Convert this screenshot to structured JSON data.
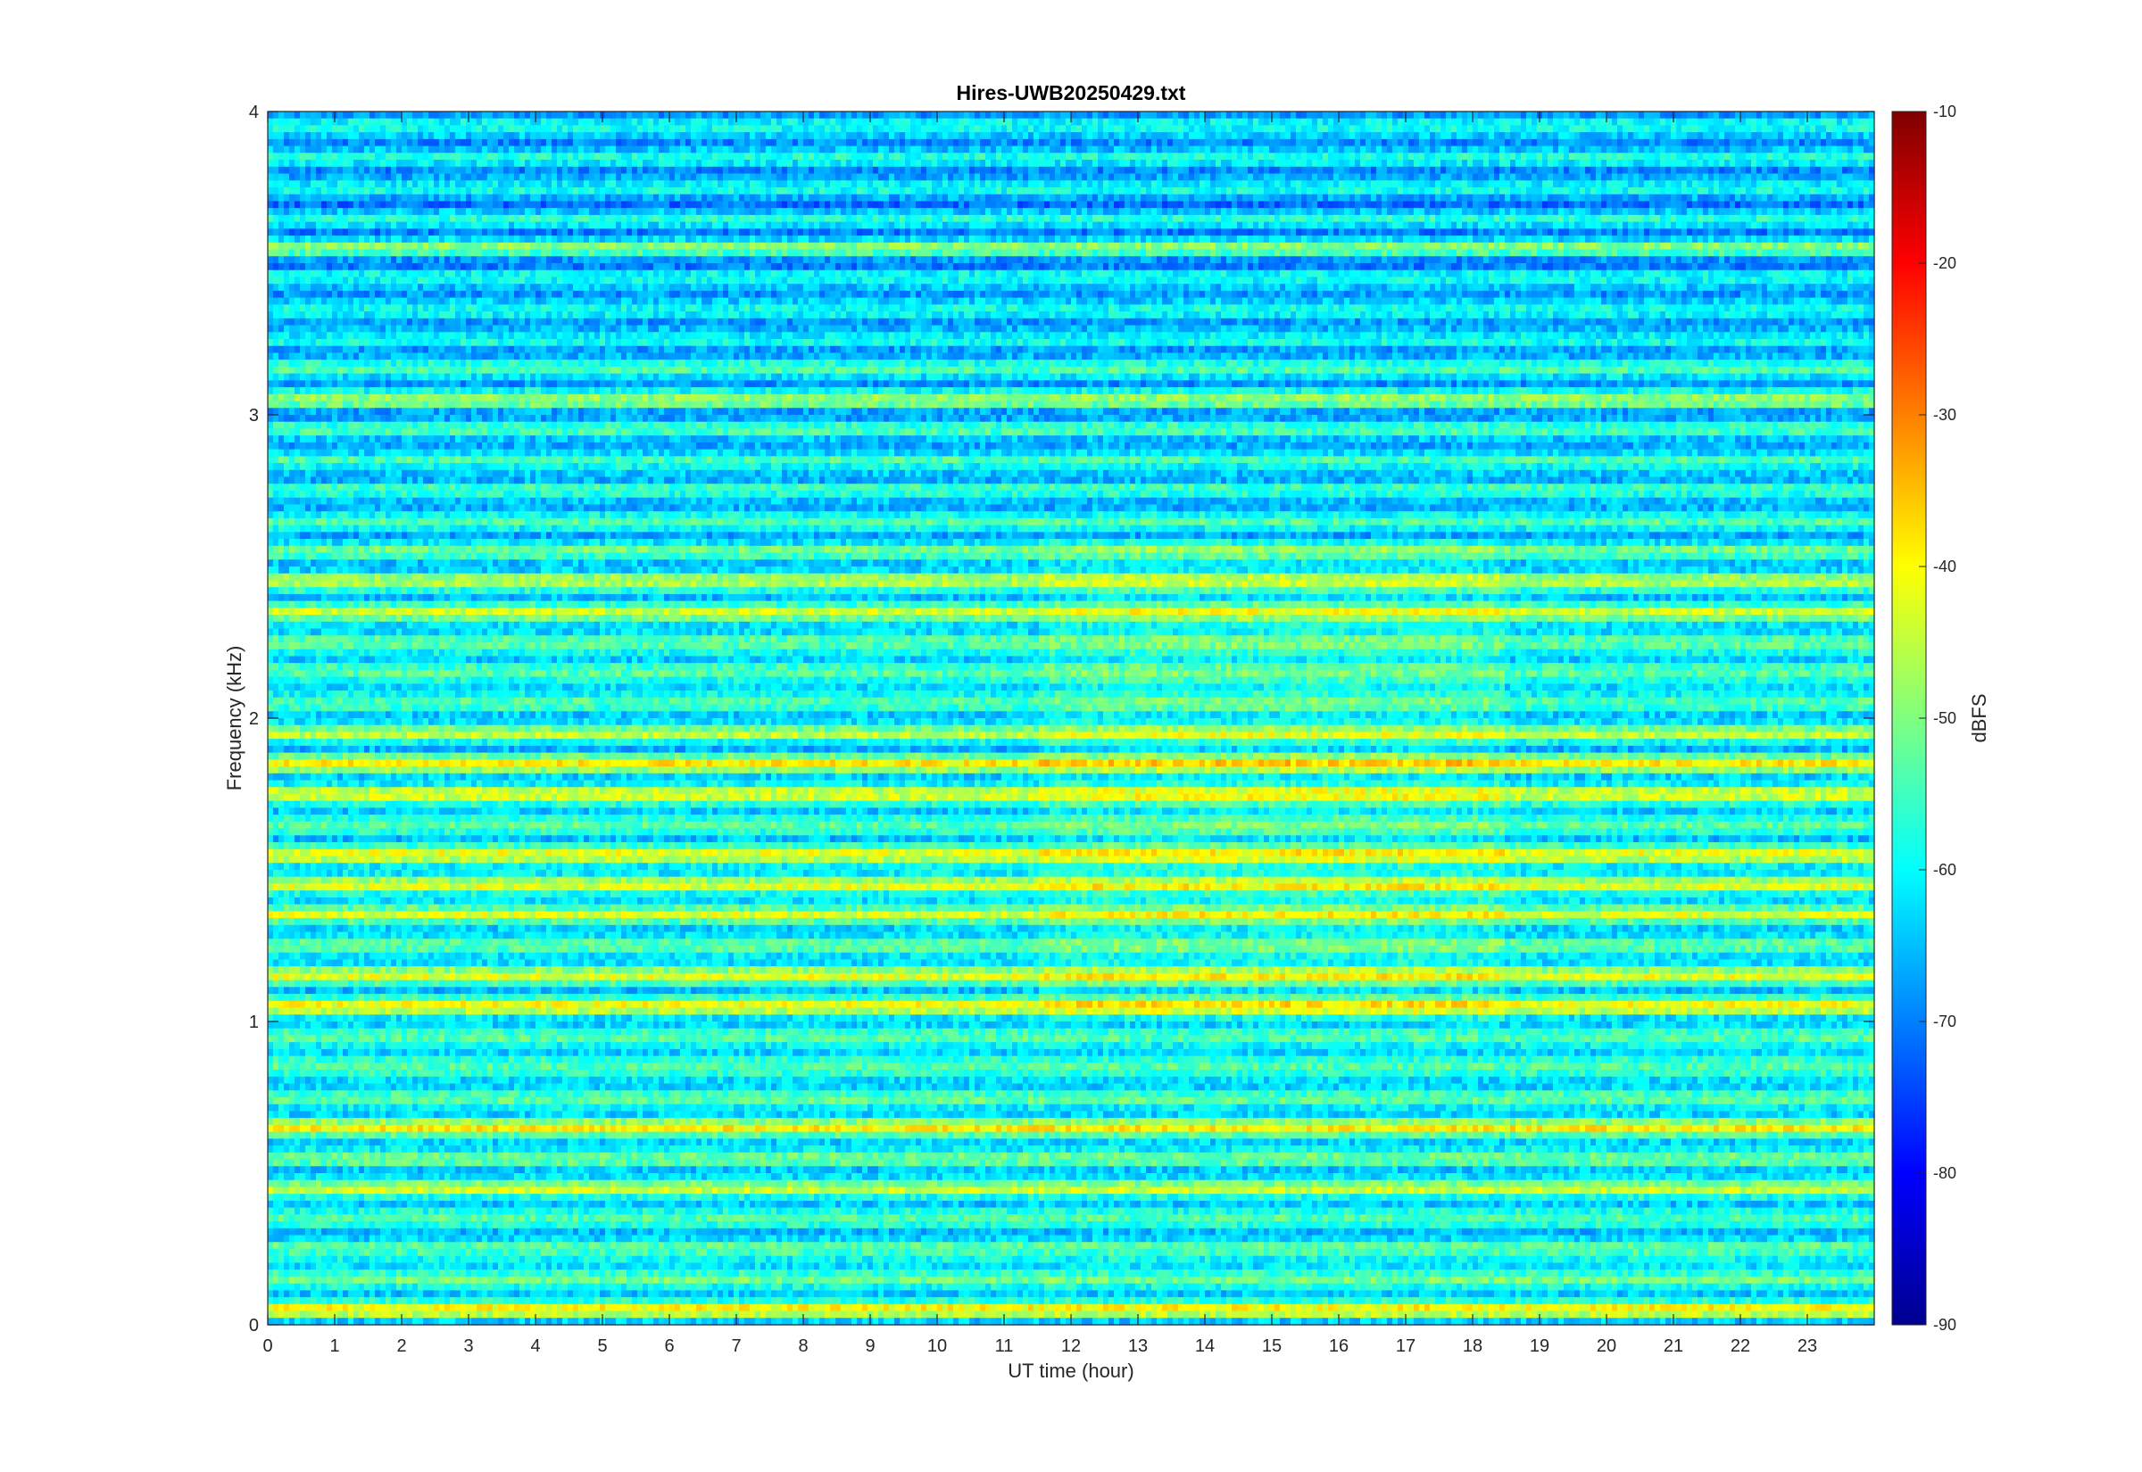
{
  "chart_data": {
    "type": "heatmap",
    "title": "Hires-UWB20250429.txt",
    "xlabel": "UT time (hour)",
    "ylabel": "Frequency (kHz)",
    "xlim": [
      0,
      24
    ],
    "ylim": [
      0,
      4
    ],
    "x_ticks": [
      0,
      1,
      2,
      3,
      4,
      5,
      6,
      7,
      8,
      9,
      10,
      11,
      12,
      13,
      14,
      15,
      16,
      17,
      18,
      19,
      20,
      21,
      22,
      23
    ],
    "y_ticks": [
      0,
      1,
      2,
      3,
      4
    ],
    "colorbar": {
      "label": "dBFS",
      "range": [
        -90,
        -10
      ],
      "ticks": [
        -10,
        -20,
        -30,
        -40,
        -50,
        -60,
        -70,
        -80,
        -90
      ],
      "colormap": "jet"
    },
    "frequency_bands_khz": [
      {
        "f": 0.05,
        "level_dbfs": -40
      },
      {
        "f": 0.45,
        "level_dbfs": -45
      },
      {
        "f": 0.65,
        "level_dbfs": -38
      },
      {
        "f": 1.05,
        "level_dbfs": -38
      },
      {
        "f": 1.15,
        "level_dbfs": -42
      },
      {
        "f": 1.35,
        "level_dbfs": -46
      },
      {
        "f": 1.45,
        "level_dbfs": -42
      },
      {
        "f": 1.55,
        "level_dbfs": -40
      },
      {
        "f": 1.75,
        "level_dbfs": -38
      },
      {
        "f": 1.85,
        "level_dbfs": -38
      },
      {
        "f": 1.95,
        "level_dbfs": -46
      },
      {
        "f": 2.35,
        "level_dbfs": -46
      },
      {
        "f": 2.45,
        "level_dbfs": -46
      },
      {
        "f": 3.05,
        "level_dbfs": -50
      },
      {
        "f": 3.55,
        "level_dbfs": -52
      }
    ],
    "colors": {
      "low": "#00008f",
      "mid": "#00ffff",
      "high": "#800000",
      "background": "#ffffff"
    }
  }
}
